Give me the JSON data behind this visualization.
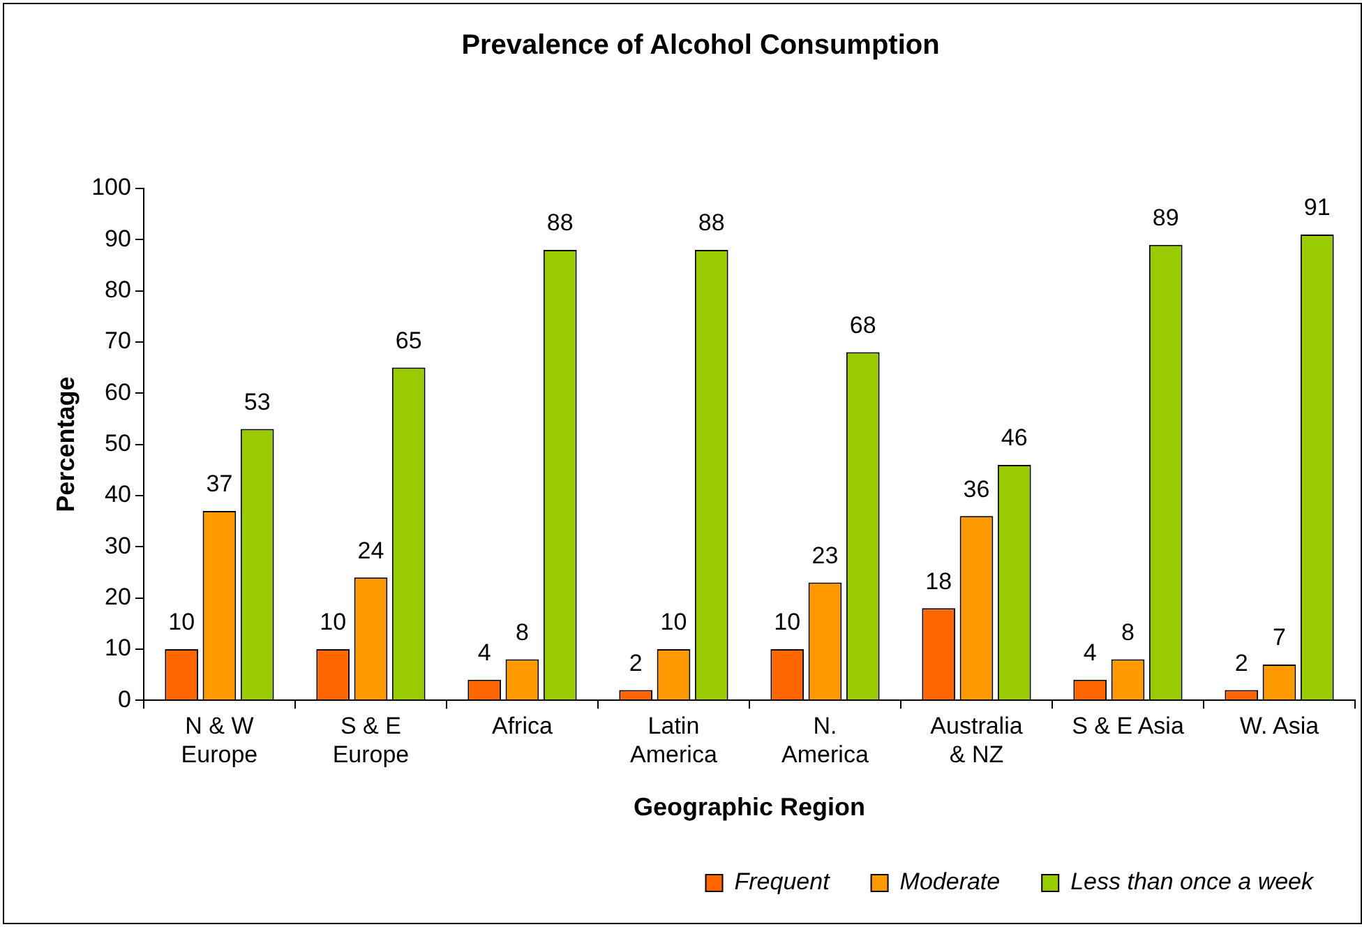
{
  "chart_data": {
    "type": "bar",
    "title": "Prevalence of Alcohol Consumption",
    "xlabel": "Geographic Region",
    "ylabel": "Percentage",
    "categories": [
      "N & W\nEurope",
      "S & E\nEurope",
      "Africa",
      "Latin\nAmerica",
      "N.\nAmerica",
      "Australia\n& NZ",
      "S & E Asia",
      "W. Asia"
    ],
    "series": [
      {
        "name": "Frequent",
        "color": "#ff6600",
        "values": [
          10,
          10,
          4,
          2,
          10,
          18,
          4,
          2
        ]
      },
      {
        "name": "Moderate",
        "color": "#ff9900",
        "values": [
          37,
          24,
          8,
          10,
          23,
          36,
          8,
          7
        ]
      },
      {
        "name": "Less than once a week",
        "color": "#99cc00",
        "values": [
          53,
          65,
          88,
          88,
          68,
          46,
          89,
          91
        ]
      }
    ],
    "ylim": [
      0,
      100
    ],
    "yticks": [
      0,
      10,
      20,
      30,
      40,
      50,
      60,
      70,
      80,
      90,
      100
    ],
    "grid": false,
    "legend": "bottom right",
    "data_labels": true
  }
}
